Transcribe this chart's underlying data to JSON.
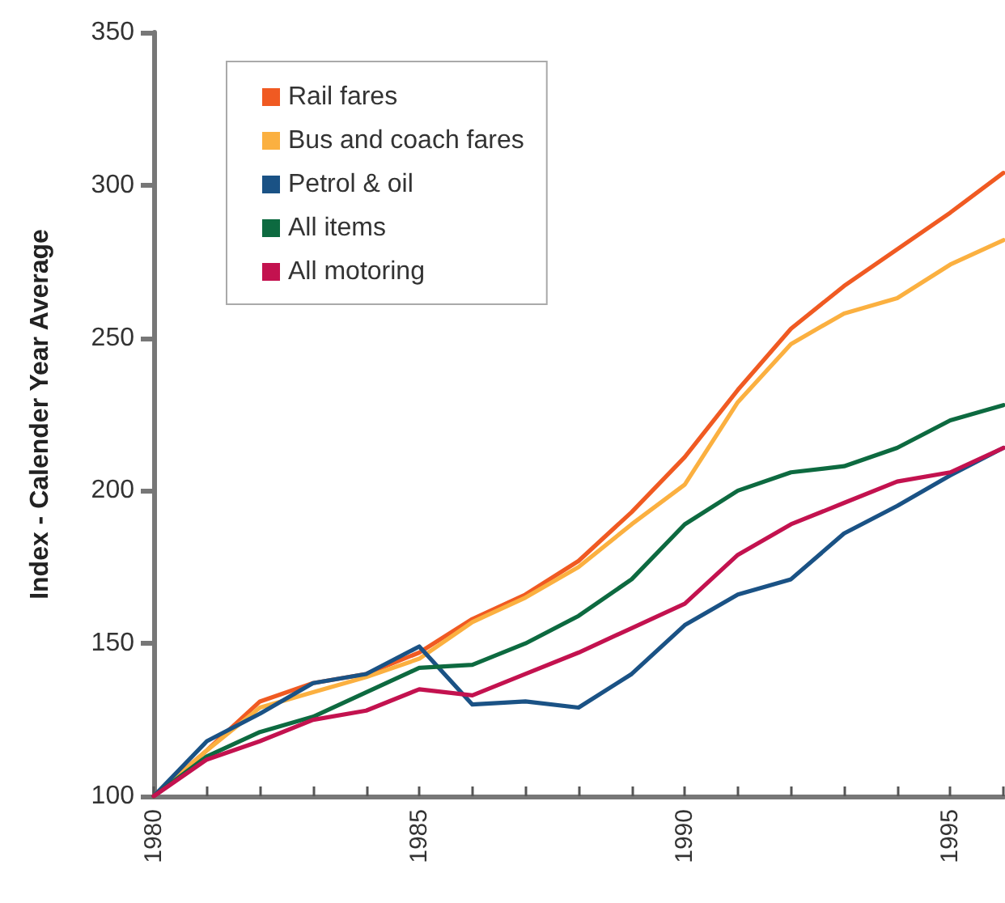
{
  "chart_data": {
    "type": "line",
    "ylabel": "Index - Calender Year Average",
    "x": [
      1980,
      1981,
      1982,
      1983,
      1984,
      1985,
      1986,
      1987,
      1988,
      1989,
      1990,
      1991,
      1992,
      1993,
      1994,
      1995,
      1996
    ],
    "series": [
      {
        "name": "Rail fares",
        "color": "#f05a22",
        "values": [
          100,
          115,
          131,
          137,
          140,
          147,
          158,
          166,
          177,
          193,
          211,
          233,
          253,
          267,
          279,
          291,
          304
        ]
      },
      {
        "name": "Bus and coach fares",
        "color": "#fbb040",
        "values": [
          100,
          115,
          129,
          134,
          139,
          145,
          157,
          165,
          175,
          189,
          202,
          229,
          248,
          258,
          263,
          274,
          282
        ]
      },
      {
        "name": "Petrol & oil",
        "color": "#1a5285",
        "values": [
          100,
          118,
          127,
          137,
          140,
          149,
          130,
          131,
          129,
          140,
          156,
          166,
          171,
          186,
          195,
          205,
          214
        ]
      },
      {
        "name": "All items",
        "color": "#0d6a40",
        "values": [
          100,
          113,
          121,
          126,
          134,
          142,
          143,
          150,
          159,
          171,
          189,
          200,
          206,
          208,
          214,
          223,
          228
        ]
      },
      {
        "name": "All motoring",
        "color": "#c3124f",
        "values": [
          100,
          112,
          118,
          125,
          128,
          135,
          133,
          140,
          147,
          155,
          163,
          179,
          189,
          196,
          203,
          206,
          214
        ]
      }
    ],
    "xlim": [
      1980,
      1996
    ],
    "xticks": [
      1980,
      {
        "value": 1981,
        "label": null
      },
      {
        "value": 1982,
        "label": null
      },
      {
        "value": 1983,
        "label": null
      },
      {
        "value": 1984,
        "label": null
      },
      1985,
      {
        "value": 1986,
        "label": null
      },
      {
        "value": 1987,
        "label": null
      },
      {
        "value": 1988,
        "label": null
      },
      {
        "value": 1989,
        "label": null
      },
      1990,
      {
        "value": 1991,
        "label": null
      },
      {
        "value": 1992,
        "label": null
      },
      {
        "value": 1993,
        "label": null
      },
      {
        "value": 1994,
        "label": null
      },
      1995,
      {
        "value": 1996,
        "label": null
      }
    ],
    "ylim": [
      100,
      350
    ],
    "yticks": [
      100,
      150,
      200,
      250,
      300,
      350
    ],
    "grid": false,
    "legend": "top left",
    "marker": "none",
    "line_style": "solid"
  }
}
